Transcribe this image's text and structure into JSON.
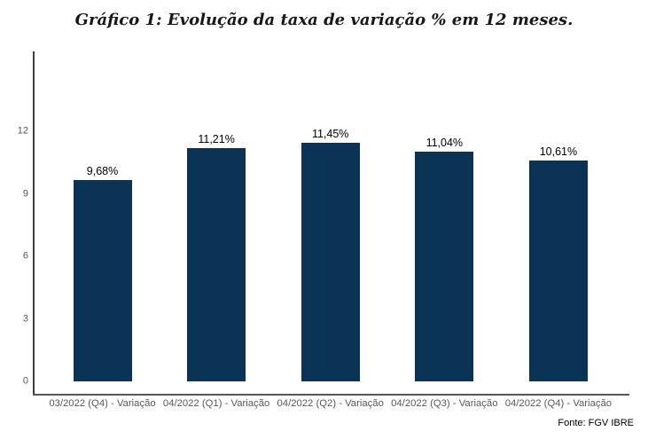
{
  "chart": {
    "title": "Gráfico 1: Evolução da taxa de variação % em 12 meses.",
    "source": "Fonte: FGV IBRE"
  },
  "chart_data": {
    "type": "bar",
    "title": "Gráfico 1: Evolução da taxa de variação % em 12 meses.",
    "categories": [
      "03/2022 (Q4) - Variação",
      "04/2022 (Q1) - Variação",
      "04/2022 (Q2) - Variação",
      "04/2022 (Q3) - Variação",
      "04/2022 (Q4) - Variação"
    ],
    "values": [
      9.68,
      11.21,
      11.45,
      11.04,
      10.61
    ],
    "value_labels": [
      "9,68%",
      "11,21%",
      "11,45%",
      "11,04%",
      "10,61%"
    ],
    "yticks": [
      0,
      3,
      6,
      9,
      12
    ],
    "ylim": [
      0,
      15.8
    ],
    "xlabel": "",
    "ylabel": "",
    "grid": false,
    "legend": false,
    "source": "Fonte: FGV IBRE",
    "colors": {
      "bar": "#0b3356",
      "y_axis_line": "#3f3f3f",
      "x_axis_line": "#555555",
      "tick_label": "#595959",
      "value_label": "#000000",
      "title": "#181818"
    }
  }
}
